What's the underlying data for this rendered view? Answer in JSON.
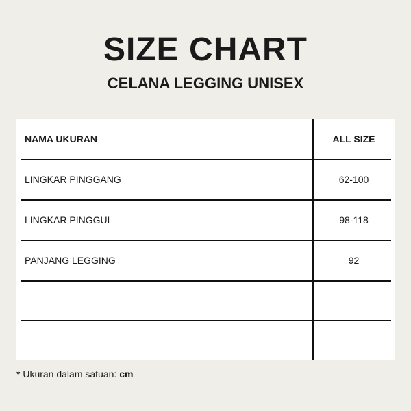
{
  "title": "SIZE CHART",
  "subtitle": "CELANA LEGGING UNISEX",
  "table": {
    "headers": [
      "NAMA UKURAN",
      "ALL SIZE"
    ],
    "rows": [
      [
        "LINGKAR PINGGANG",
        "62-100"
      ],
      [
        "LINGKAR PINGGUL",
        "98-118"
      ],
      [
        "PANJANG LEGGING",
        "92"
      ],
      [
        "",
        ""
      ],
      [
        "",
        ""
      ]
    ]
  },
  "note": {
    "text": "* Ukuran dalam satuan: ",
    "unit": "cm"
  }
}
